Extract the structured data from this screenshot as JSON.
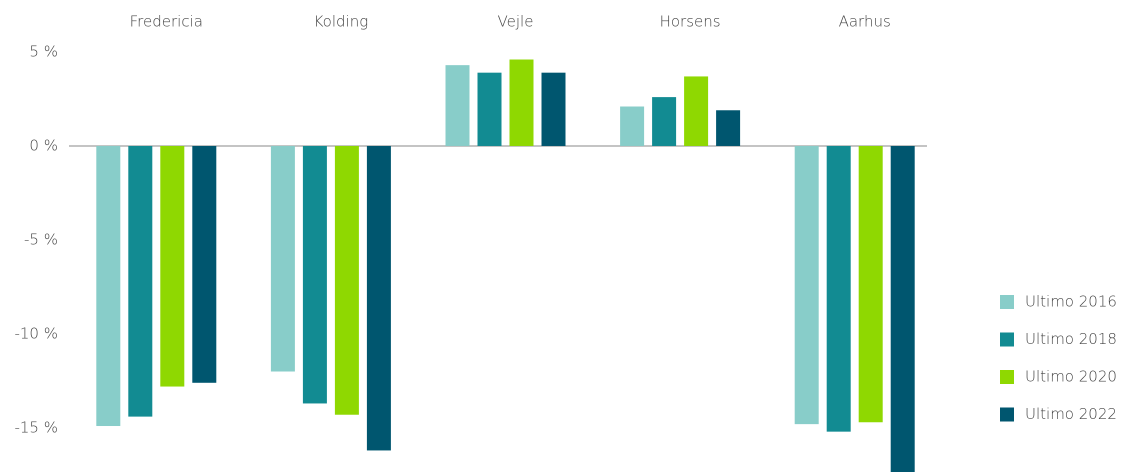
{
  "chart_data": {
    "type": "bar",
    "categories": [
      "Fredericia",
      "Kolding",
      "Vejle",
      "Horsens",
      "Aarhus"
    ],
    "series": [
      {
        "name": "Ultimo 2016",
        "color": "#88cdc9",
        "values": [
          -14.9,
          -12.0,
          4.3,
          2.1,
          -14.8
        ]
      },
      {
        "name": "Ultimo 2018",
        "color": "#128b92",
        "values": [
          -14.4,
          -13.7,
          3.9,
          2.6,
          -15.2
        ]
      },
      {
        "name": "Ultimo 2020",
        "color": "#8fd801",
        "values": [
          -12.8,
          -14.3,
          4.6,
          3.7,
          -14.7
        ]
      },
      {
        "name": "Ultimo 2022",
        "color": "#00566f",
        "values": [
          -12.6,
          -16.2,
          3.9,
          1.9,
          -18.0
        ]
      }
    ],
    "ylim": [
      -17.4,
      5
    ],
    "yticks": [
      {
        "value": 5,
        "label": "5 %"
      },
      {
        "value": 0,
        "label": "0 %"
      },
      {
        "value": -5,
        "label": "-5 %"
      },
      {
        "value": -10,
        "label": "-10 %"
      },
      {
        "value": -15,
        "label": "-15 %"
      }
    ],
    "zero_line": true,
    "legend": "right"
  }
}
